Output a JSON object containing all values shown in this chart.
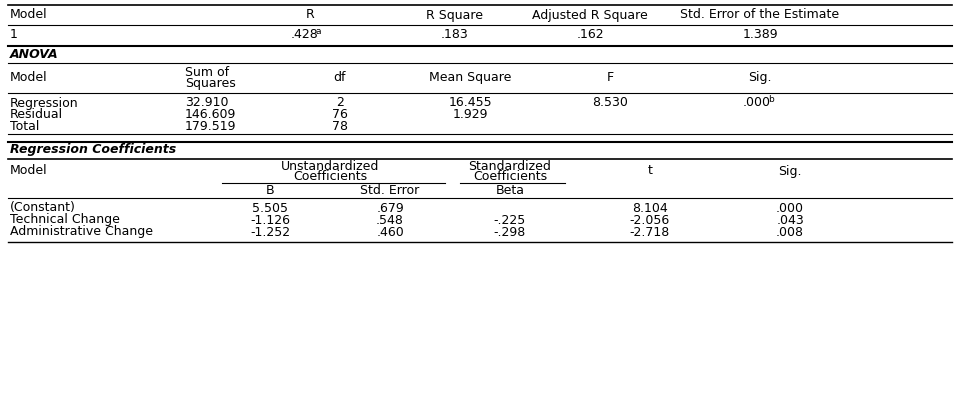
{
  "background_color": "#ffffff",
  "text_color": "#000000",
  "font_size": 9.0,
  "section1_header": [
    "Model",
    "R",
    "R Square",
    "Adjusted R Square",
    "Std. Error of the Estimate"
  ],
  "section1_data": [
    "1",
    ".428",
    "a",
    ".183",
    ".162",
    "1.389"
  ],
  "section2_label": "ANOVA",
  "section2_rows": [
    [
      "Regression",
      "32.910",
      "2",
      "16.455",
      "8.530",
      ".000",
      "b"
    ],
    [
      "Residual",
      "146.609",
      "76",
      "1.929",
      "",
      "",
      ""
    ],
    [
      "Total",
      "179.519",
      "78",
      "",
      "",
      "",
      ""
    ]
  ],
  "section3_label": "Regression Coefficients",
  "section3_rows": [
    [
      "(Constant)",
      "5.505",
      ".679",
      "",
      "8.104",
      ".000"
    ],
    [
      "Technical Change",
      "-1.126",
      ".548",
      "-.225",
      "-2.056",
      ".043"
    ],
    [
      "Administrative Change",
      "-1.252",
      ".460",
      "-.298",
      "-2.718",
      ".008"
    ]
  ]
}
